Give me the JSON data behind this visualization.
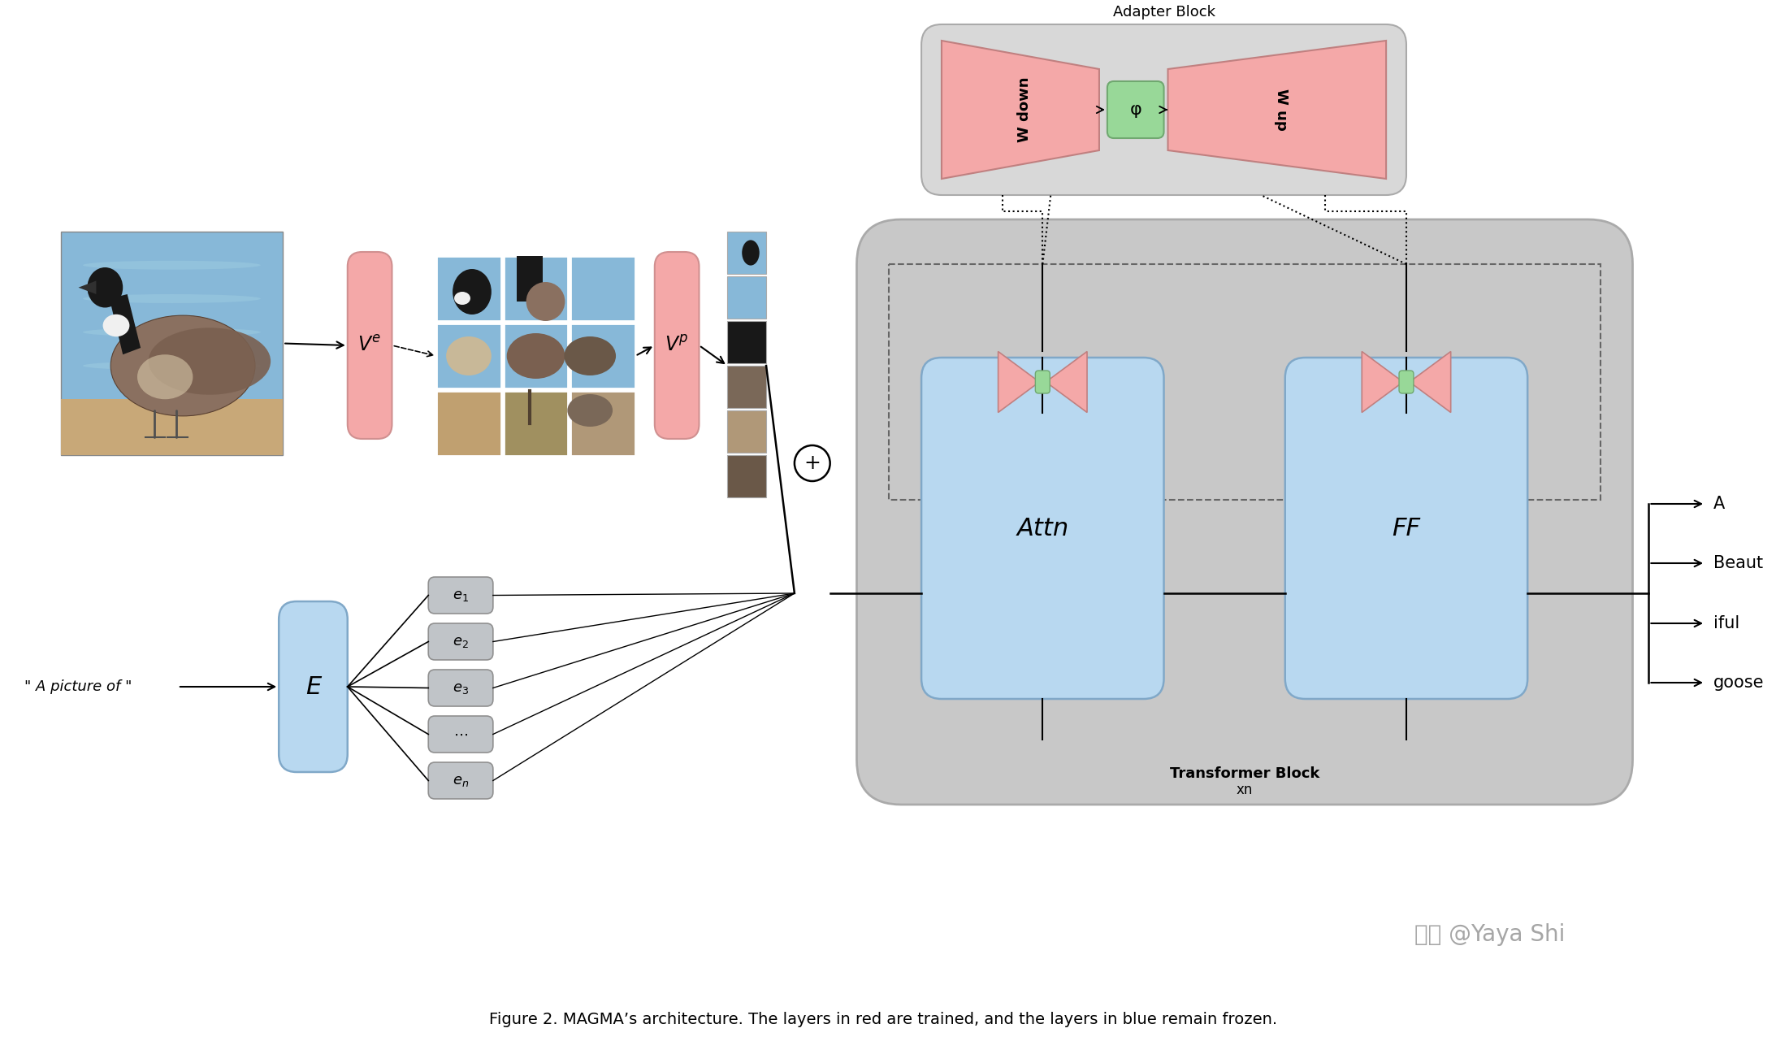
{
  "title": "Figure 2. MAGMA’s architecture. The layers in red are trained, and the layers in blue remain frozen.",
  "background_color": "#ffffff",
  "adapter_block_label": "Adapter Block",
  "transformer_block_label": "Transformer Block",
  "transformer_block_sublabel": "xn",
  "pink_color": "#f4a8a8",
  "blue_color": "#b8d8f0",
  "green_color": "#98d898",
  "gray_tb": "#c8c8c8",
  "gray_adapter": "#d8d8d8",
  "gray_embed": "#b0b8c0",
  "output_tokens": [
    "A",
    "Beaut",
    "iful",
    "goose"
  ],
  "text_input": "\" A picture of \"",
  "w_down_label": "W down",
  "w_up_label": "W up",
  "phi_label": "φ",
  "attn_label": "Attn",
  "ff_label": "FF",
  "e_label": "E",
  "e_tokens": [
    "e_1",
    "e_2",
    "e_3",
    "...",
    "e_n"
  ],
  "watermark": "知乎 @Yaya Shi"
}
